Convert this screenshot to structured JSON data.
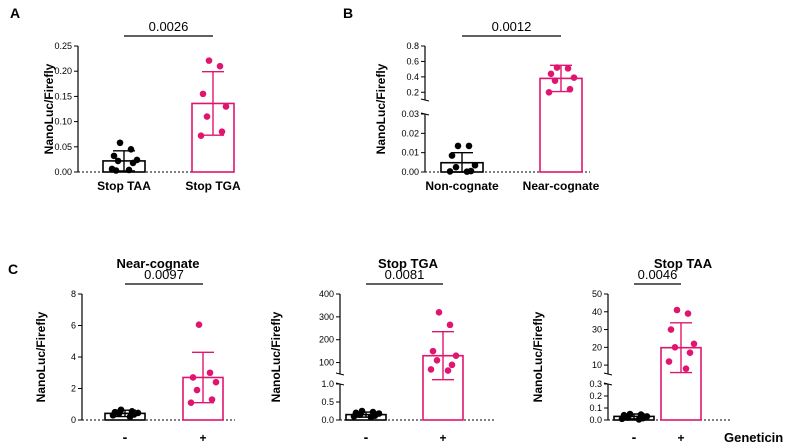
{
  "colors": {
    "control": "#000000",
    "treated": "#e0156f",
    "axis": "#000000"
  },
  "chart_data": [
    {
      "panel": "A",
      "type": "bar",
      "title": "",
      "ylabel": "NanoLuc/Firefly",
      "categories": [
        "Stop TAA",
        "Stop TGA"
      ],
      "yticks": [
        "0.00",
        "0.05",
        "0.10",
        "0.15",
        "0.20",
        "0.25"
      ],
      "ylim": [
        0,
        0.25
      ],
      "pvalue": "0.0026",
      "series": [
        {
          "name": "Stop TAA",
          "mean": 0.022,
          "sd": 0.02,
          "points": [
            0.058,
            0.045,
            0.032,
            0.024,
            0.022,
            0.018,
            0.006,
            0.004,
            0.003
          ]
        },
        {
          "name": "Stop TGA",
          "mean": 0.136,
          "sd": 0.063,
          "points": [
            0.221,
            0.21,
            0.155,
            0.13,
            0.11,
            0.08,
            0.072
          ]
        }
      ]
    },
    {
      "panel": "B",
      "type": "bar",
      "title": "",
      "ylabel": "NanoLuc/Firefly",
      "categories": [
        "Non-cognate",
        "Near-cognate"
      ],
      "yticks_lower": [
        "0.00",
        "0.01",
        "0.02",
        "0.03"
      ],
      "yticks_upper": [
        "0.2",
        "0.4",
        "0.6",
        "0.8"
      ],
      "ylim_lower": [
        0,
        0.03
      ],
      "ylim_upper": [
        0.1,
        0.8
      ],
      "pvalue": "0.0012",
      "series": [
        {
          "name": "Non-cognate",
          "mean": 0.0048,
          "sd": 0.0052,
          "points": [
            0.0135,
            0.0135,
            0.0085,
            0.0035,
            0.0025,
            0.0005,
            0.0003,
            0.0002
          ]
        },
        {
          "name": "Near-cognate",
          "mean": 0.38,
          "sd": 0.17,
          "points": [
            0.52,
            0.51,
            0.44,
            0.39,
            0.35,
            0.24,
            0.2
          ]
        }
      ]
    },
    {
      "panel": "C",
      "type": "bar",
      "title": "Near-cognate",
      "ylabel": "NanoLuc/Firefly",
      "categories": [
        "-",
        "+"
      ],
      "yticks": [
        "0",
        "2",
        "4",
        "6",
        "8"
      ],
      "ylim": [
        0,
        8
      ],
      "pvalue": "0.0097",
      "series": [
        {
          "name": "-",
          "mean": 0.42,
          "sd": 0.2,
          "points": [
            0.65,
            0.55,
            0.5,
            0.45,
            0.4,
            0.35,
            0.3,
            0.2
          ]
        },
        {
          "name": "+",
          "mean": 2.7,
          "sd": 1.6,
          "points": [
            6.05,
            3.0,
            2.7,
            2.4,
            1.9,
            1.3,
            1.1
          ]
        }
      ]
    },
    {
      "panel": "",
      "type": "bar",
      "title": "Stop TGA",
      "ylabel": "NanoLuc/Firefly",
      "categories": [
        "-",
        "+"
      ],
      "yticks_lower": [
        "0.0",
        "0.5",
        "1.0"
      ],
      "yticks_upper": [
        "100",
        "200",
        "300",
        "400"
      ],
      "ylim_lower": [
        0,
        1.0
      ],
      "ylim_upper": [
        50,
        400
      ],
      "pvalue": "0.0081",
      "series": [
        {
          "name": "-",
          "mean": 0.15,
          "sd": 0.07,
          "points": [
            0.25,
            0.22,
            0.2,
            0.18,
            0.15,
            0.12,
            0.1,
            0.08
          ]
        },
        {
          "name": "+",
          "mean": 130,
          "sd": 105,
          "points": [
            320,
            265,
            150,
            130,
            110,
            90,
            70,
            65
          ]
        }
      ]
    },
    {
      "panel": "",
      "type": "bar",
      "title": "Stop TAA",
      "ylabel": "NanoLuc/Firefly",
      "categories": [
        "-",
        "+"
      ],
      "yticks_lower": [
        "0.0",
        "0.1",
        "0.2",
        "0.3"
      ],
      "yticks_upper": [
        "10",
        "20",
        "30",
        "40",
        "50"
      ],
      "ylim_lower": [
        0,
        0.3
      ],
      "ylim_upper": [
        5,
        50
      ],
      "pvalue": "0.0046",
      "series": [
        {
          "name": "-",
          "mean": 0.03,
          "sd": 0.02,
          "points": [
            0.05,
            0.045,
            0.04,
            0.03,
            0.02,
            0.015,
            0.01,
            0.005
          ]
        },
        {
          "name": "+",
          "mean": 19.8,
          "sd": 14.0,
          "points": [
            41,
            39,
            30,
            22,
            20,
            17,
            12,
            8
          ]
        }
      ]
    }
  ],
  "panel_c_xlabel": "Geneticin"
}
